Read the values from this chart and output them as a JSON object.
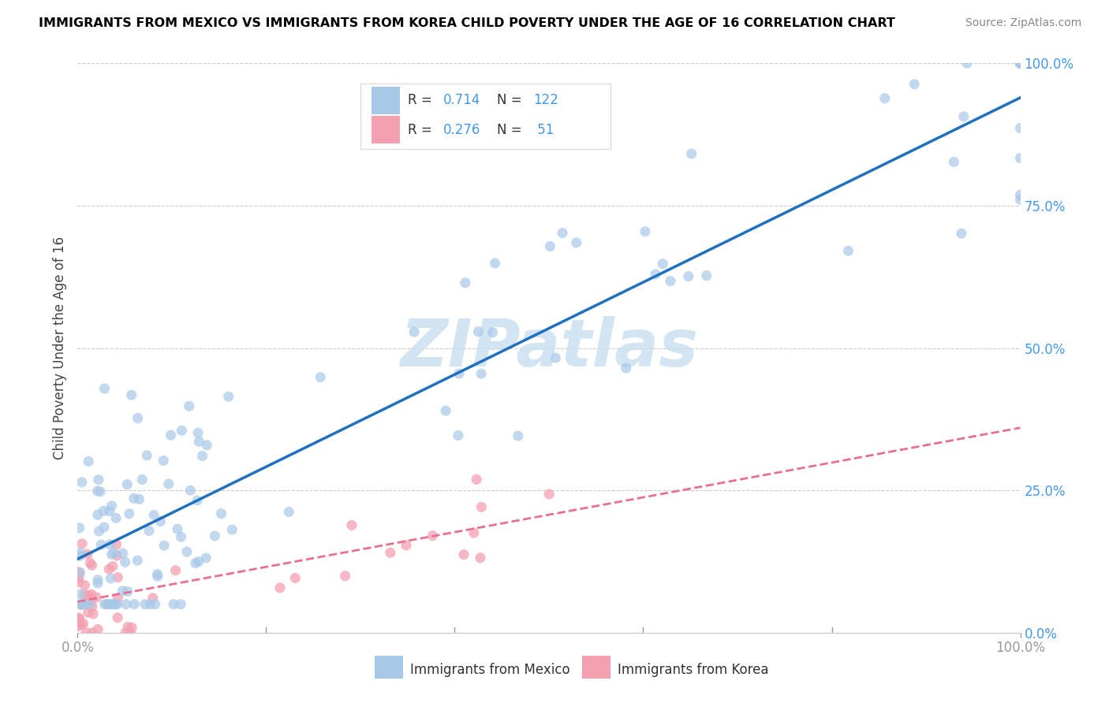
{
  "title": "IMMIGRANTS FROM MEXICO VS IMMIGRANTS FROM KOREA CHILD POVERTY UNDER THE AGE OF 16 CORRELATION CHART",
  "source": "Source: ZipAtlas.com",
  "ylabel": "Child Poverty Under the Age of 16",
  "mexico_R": "0.714",
  "mexico_N": "122",
  "korea_R": "0.276",
  "korea_N": " 51",
  "mexico_color": "#a8c8e8",
  "korea_color": "#f4a0b0",
  "mexico_line_color": "#2070c0",
  "korea_line_color": "#e87090",
  "korea_line_style": "--",
  "watermark": "ZIPatlas",
  "watermark_color": "#c8dff0",
  "right_tick_color": "#4499ee",
  "bottom_label_color": "#333333",
  "grid_color": "#cccccc",
  "title_fontsize": 11.5,
  "source_fontsize": 10,
  "tick_fontsize": 12,
  "legend_fontsize": 12
}
